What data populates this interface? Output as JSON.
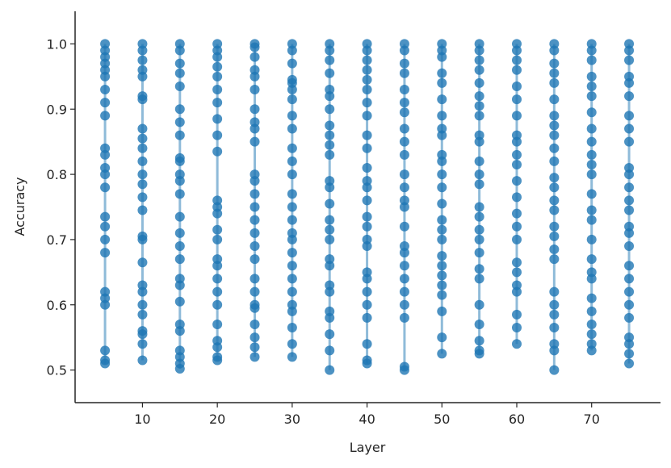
{
  "chart_data": {
    "type": "scatter",
    "x_label": "Layer",
    "y_label": "Accuracy",
    "xlim": [
      1,
      79.2
    ],
    "xticks": [
      10,
      20,
      30,
      40,
      50,
      60,
      70
    ],
    "ylim": [
      0.45,
      1.05
    ],
    "yticks": [
      0.5,
      0.6,
      0.7,
      0.8,
      0.9,
      {
        "value": 1,
        "label": "1.0"
      }
    ],
    "connect_points": true,
    "series": [
      {
        "x": 5,
        "color": "#1f77b4",
        "values": [
          1.0,
          0.99,
          0.98,
          0.97,
          0.96,
          0.95,
          0.93,
          0.91,
          0.89,
          0.84,
          0.83,
          0.81,
          0.8,
          0.78,
          0.735,
          0.72,
          0.7,
          0.68,
          0.62,
          0.61,
          0.6,
          0.53,
          0.515,
          0.51
        ]
      },
      {
        "x": 10,
        "color": "#1f77b4",
        "values": [
          1.0,
          0.99,
          0.975,
          0.96,
          0.95,
          0.92,
          0.915,
          0.87,
          0.855,
          0.84,
          0.82,
          0.8,
          0.785,
          0.765,
          0.745,
          0.705,
          0.7,
          0.665,
          0.63,
          0.62,
          0.6,
          0.585,
          0.56,
          0.555,
          0.54,
          0.515
        ]
      },
      {
        "x": 15,
        "color": "#1f77b4",
        "values": [
          1.0,
          0.99,
          0.97,
          0.955,
          0.935,
          0.9,
          0.88,
          0.86,
          0.825,
          0.82,
          0.8,
          0.79,
          0.77,
          0.735,
          0.71,
          0.69,
          0.67,
          0.64,
          0.63,
          0.605,
          0.57,
          0.56,
          0.53,
          0.52,
          0.51,
          0.502
        ]
      },
      {
        "x": 20,
        "color": "#1f77b4",
        "values": [
          1.0,
          0.99,
          0.98,
          0.965,
          0.95,
          0.93,
          0.91,
          0.885,
          0.86,
          0.835,
          0.76,
          0.75,
          0.74,
          0.715,
          0.7,
          0.67,
          0.66,
          0.64,
          0.62,
          0.6,
          0.57,
          0.545,
          0.535,
          0.52,
          0.515
        ]
      },
      {
        "x": 25,
        "color": "#1f77b4",
        "values": [
          1.0,
          0.995,
          0.98,
          0.96,
          0.95,
          0.93,
          0.9,
          0.88,
          0.87,
          0.85,
          0.8,
          0.79,
          0.77,
          0.75,
          0.73,
          0.71,
          0.69,
          0.67,
          0.64,
          0.62,
          0.6,
          0.595,
          0.57,
          0.55,
          0.535,
          0.52
        ]
      },
      {
        "x": 30,
        "color": "#1f77b4",
        "values": [
          1.0,
          0.99,
          0.97,
          0.945,
          0.94,
          0.93,
          0.915,
          0.89,
          0.87,
          0.84,
          0.82,
          0.8,
          0.77,
          0.75,
          0.73,
          0.71,
          0.7,
          0.68,
          0.66,
          0.64,
          0.62,
          0.6,
          0.59,
          0.565,
          0.54,
          0.52
        ]
      },
      {
        "x": 35,
        "color": "#1f77b4",
        "values": [
          1.0,
          0.99,
          0.975,
          0.955,
          0.93,
          0.92,
          0.9,
          0.875,
          0.86,
          0.845,
          0.83,
          0.79,
          0.78,
          0.755,
          0.73,
          0.715,
          0.7,
          0.67,
          0.66,
          0.63,
          0.62,
          0.59,
          0.58,
          0.555,
          0.53,
          0.5
        ]
      },
      {
        "x": 40,
        "color": "#1f77b4",
        "values": [
          1.0,
          0.99,
          0.975,
          0.96,
          0.945,
          0.93,
          0.91,
          0.89,
          0.86,
          0.84,
          0.81,
          0.79,
          0.78,
          0.76,
          0.735,
          0.72,
          0.7,
          0.69,
          0.65,
          0.64,
          0.62,
          0.6,
          0.58,
          0.54,
          0.515,
          0.51
        ]
      },
      {
        "x": 45,
        "color": "#1f77b4",
        "values": [
          1.0,
          0.99,
          0.97,
          0.955,
          0.93,
          0.91,
          0.895,
          0.87,
          0.85,
          0.83,
          0.8,
          0.78,
          0.76,
          0.75,
          0.72,
          0.69,
          0.68,
          0.66,
          0.64,
          0.62,
          0.6,
          0.58,
          0.505,
          0.5
        ]
      },
      {
        "x": 50,
        "color": "#1f77b4",
        "values": [
          1.0,
          0.99,
          0.98,
          0.955,
          0.94,
          0.915,
          0.89,
          0.87,
          0.86,
          0.83,
          0.82,
          0.8,
          0.78,
          0.755,
          0.73,
          0.715,
          0.7,
          0.675,
          0.66,
          0.645,
          0.63,
          0.615,
          0.59,
          0.55,
          0.525
        ]
      },
      {
        "x": 55,
        "color": "#1f77b4",
        "values": [
          1.0,
          0.99,
          0.975,
          0.96,
          0.94,
          0.92,
          0.905,
          0.89,
          0.86,
          0.85,
          0.82,
          0.8,
          0.785,
          0.75,
          0.735,
          0.715,
          0.7,
          0.68,
          0.655,
          0.64,
          0.6,
          0.57,
          0.545,
          0.53,
          0.525
        ]
      },
      {
        "x": 60,
        "color": "#1f77b4",
        "values": [
          1.0,
          0.99,
          0.975,
          0.96,
          0.935,
          0.915,
          0.89,
          0.86,
          0.85,
          0.83,
          0.815,
          0.79,
          0.765,
          0.74,
          0.72,
          0.7,
          0.665,
          0.65,
          0.63,
          0.62,
          0.585,
          0.565,
          0.54
        ]
      },
      {
        "x": 65,
        "color": "#1f77b4",
        "values": [
          1.0,
          0.99,
          0.97,
          0.955,
          0.94,
          0.915,
          0.89,
          0.875,
          0.86,
          0.84,
          0.82,
          0.795,
          0.78,
          0.76,
          0.745,
          0.72,
          0.705,
          0.685,
          0.67,
          0.62,
          0.6,
          0.585,
          0.565,
          0.54,
          0.53,
          0.5
        ]
      },
      {
        "x": 70,
        "color": "#1f77b4",
        "values": [
          1.0,
          0.99,
          0.975,
          0.95,
          0.935,
          0.92,
          0.895,
          0.87,
          0.85,
          0.83,
          0.815,
          0.8,
          0.77,
          0.745,
          0.73,
          0.7,
          0.67,
          0.65,
          0.64,
          0.61,
          0.59,
          0.57,
          0.555,
          0.54,
          0.53
        ]
      },
      {
        "x": 75,
        "color": "#1f77b4",
        "values": [
          1.0,
          0.99,
          0.975,
          0.95,
          0.94,
          0.92,
          0.89,
          0.87,
          0.85,
          0.81,
          0.8,
          0.78,
          0.76,
          0.745,
          0.72,
          0.71,
          0.69,
          0.66,
          0.64,
          0.62,
          0.6,
          0.58,
          0.55,
          0.54,
          0.525,
          0.51
        ]
      }
    ]
  }
}
